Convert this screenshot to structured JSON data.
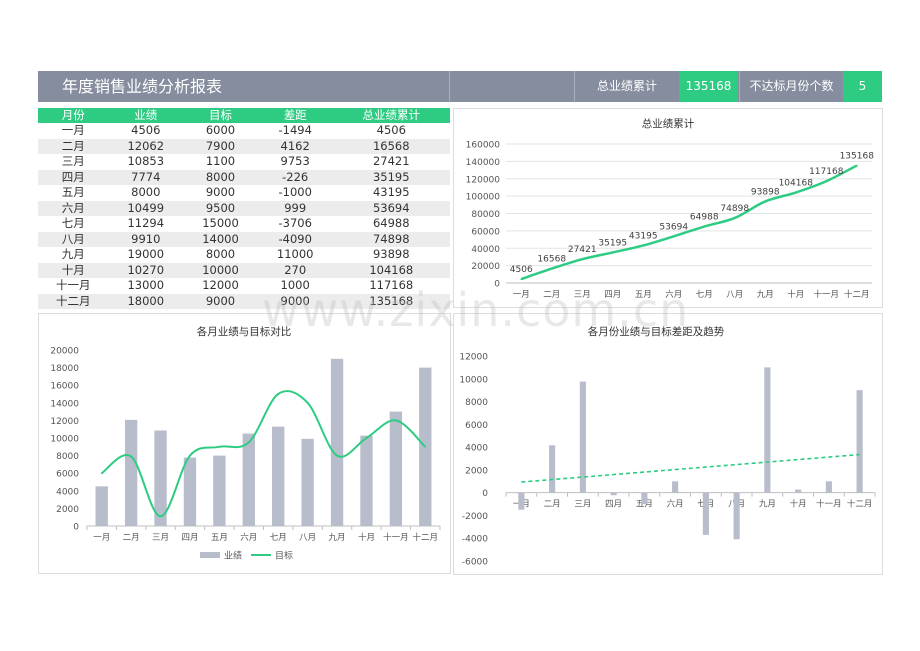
{
  "header": {
    "title": "年度销售业绩分析报表",
    "cum_label": "总业绩累计",
    "cum_value": "135168",
    "miss_label": "不达标月份个数",
    "miss_value": "5"
  },
  "table": {
    "headers": [
      "月份",
      "业绩",
      "目标",
      "差距",
      "总业绩累计"
    ],
    "rows": [
      [
        "一月",
        "4506",
        "6000",
        "-1494",
        "4506"
      ],
      [
        "二月",
        "12062",
        "7900",
        "4162",
        "16568"
      ],
      [
        "三月",
        "10853",
        "1100",
        "9753",
        "27421"
      ],
      [
        "四月",
        "7774",
        "8000",
        "-226",
        "35195"
      ],
      [
        "五月",
        "8000",
        "9000",
        "-1000",
        "43195"
      ],
      [
        "六月",
        "10499",
        "9500",
        "999",
        "53694"
      ],
      [
        "七月",
        "11294",
        "15000",
        "-3706",
        "64988"
      ],
      [
        "八月",
        "9910",
        "14000",
        "-4090",
        "74898"
      ],
      [
        "九月",
        "19000",
        "8000",
        "11000",
        "93898"
      ],
      [
        "十月",
        "10270",
        "10000",
        "270",
        "104168"
      ],
      [
        "十一月",
        "13000",
        "12000",
        "1000",
        "117168"
      ],
      [
        "十二月",
        "18000",
        "9000",
        "9000",
        "135168"
      ]
    ]
  },
  "watermark": "www.zixin.com.cn",
  "colors": {
    "green": "#2ecc83",
    "bar": "#b8bdcb",
    "header": "#868d9e",
    "grid": "#e3e3e3"
  },
  "chart_data": [
    {
      "type": "line",
      "title": "总业绩累计",
      "categories": [
        "一月",
        "二月",
        "三月",
        "四月",
        "五月",
        "六月",
        "七月",
        "八月",
        "九月",
        "十月",
        "十一月",
        "十二月"
      ],
      "values": [
        4506,
        16568,
        27421,
        35195,
        43195,
        53694,
        64988,
        74898,
        93898,
        104168,
        117168,
        135168
      ],
      "ylim": [
        0,
        160000
      ],
      "yticks": [
        "0",
        "20000",
        "40000",
        "60000",
        "80000",
        "100000",
        "120000",
        "140000",
        "160000"
      ],
      "grid": true,
      "data_labels": true
    },
    {
      "type": "bar",
      "title": "各月业绩与目标对比",
      "categories": [
        "一月",
        "二月",
        "三月",
        "四月",
        "五月",
        "六月",
        "七月",
        "八月",
        "九月",
        "十月",
        "十一月",
        "十二月"
      ],
      "series": [
        {
          "name": "业绩",
          "type": "bar",
          "values": [
            4506,
            12062,
            10853,
            7774,
            8000,
            10499,
            11294,
            9910,
            19000,
            10270,
            13000,
            18000
          ]
        },
        {
          "name": "目标",
          "type": "line",
          "values": [
            6000,
            7900,
            1100,
            8000,
            9000,
            9500,
            15000,
            14000,
            8000,
            10000,
            12000,
            9000
          ]
        }
      ],
      "ylim": [
        0,
        20000
      ],
      "yticks": [
        "0",
        "2000",
        "4000",
        "6000",
        "8000",
        "10000",
        "12000",
        "14000",
        "16000",
        "18000",
        "20000"
      ],
      "legend": "bottom",
      "grid": false
    },
    {
      "type": "bar",
      "title": "各月份业绩与目标差距及趋势",
      "categories": [
        "一月",
        "二月",
        "三月",
        "四月",
        "五月",
        "六月",
        "七月",
        "八月",
        "九月",
        "十月",
        "十一月",
        "十二月"
      ],
      "values": [
        -1494,
        4162,
        9753,
        -226,
        -1000,
        999,
        -3706,
        -4090,
        11000,
        270,
        1000,
        9000
      ],
      "trendline": "linear",
      "ylim": [
        -6000,
        12000
      ],
      "yticks": [
        "-6000",
        "-4000",
        "-2000",
        "0",
        "2000",
        "4000",
        "6000",
        "8000",
        "10000",
        "12000"
      ],
      "grid": false
    }
  ]
}
